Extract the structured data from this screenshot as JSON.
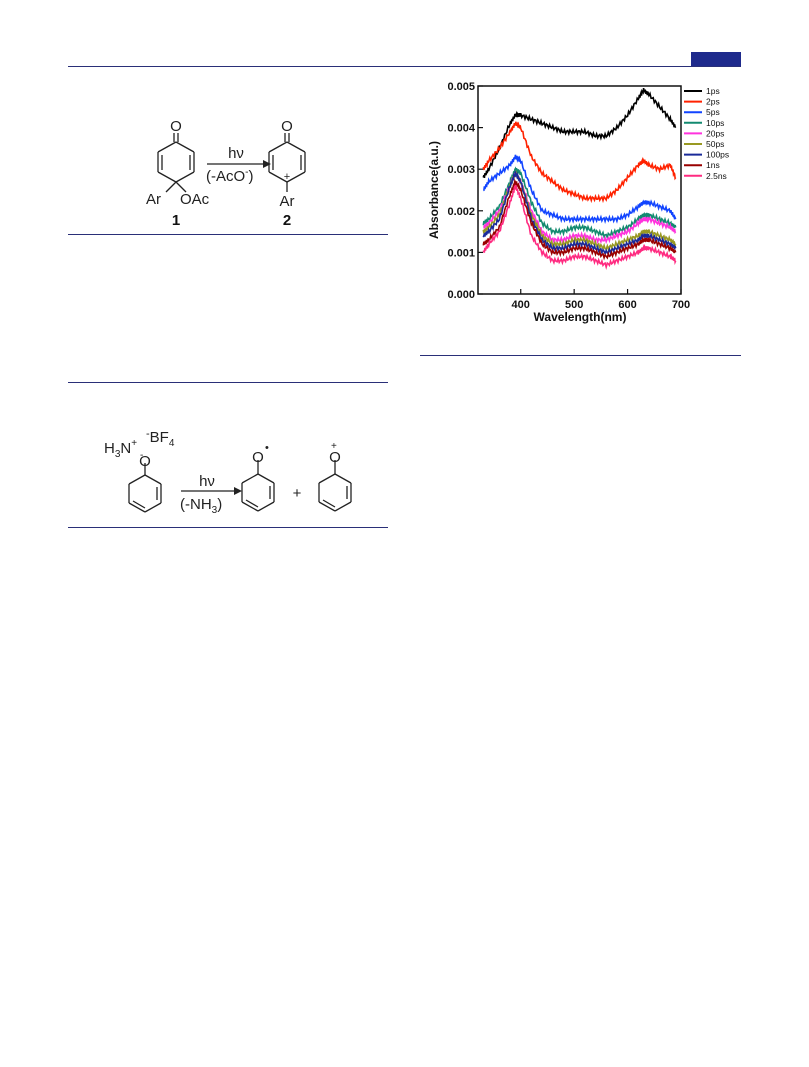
{
  "header": {
    "accent_color": "#1e2a8c",
    "rule_color": "#2a2f78"
  },
  "scheme1": {
    "reactant": {
      "oxo": "O",
      "aryl": "Ar",
      "acetoxy": "OAc",
      "number": "1"
    },
    "arrow": {
      "top": "hν",
      "bottom": "(-AcO",
      "bottom_sup": "-",
      "bottom_close": ")"
    },
    "product": {
      "oxo": "O",
      "charge": "+",
      "aryl": "Ar",
      "number": "2"
    }
  },
  "scheme2": {
    "reagent": {
      "h": "H",
      "h_sub": "3",
      "n": "N",
      "n_charge": "+",
      "anion_charge": "-",
      "anion": "BF",
      "anion_sub": "4",
      "o": "O",
      "o_charge": "-"
    },
    "arrow": {
      "top": "hν",
      "bottom": "(-NH",
      "bottom_sub": "3",
      "bottom_close": ")"
    },
    "product1": {
      "o": "O",
      "radical": "•"
    },
    "plus": "+",
    "product2": {
      "o": "O",
      "charge": "+"
    }
  },
  "chart_data": {
    "type": "line",
    "title": "",
    "xlabel": "Wavelength(nm)",
    "ylabel": "Absorbance(a.u.)",
    "xlim": [
      320,
      700
    ],
    "ylim": [
      0,
      0.005
    ],
    "x_ticks": [
      "400",
      "500",
      "600",
      "700"
    ],
    "y_ticks": [
      "0.000",
      "0.001",
      "0.002",
      "0.003",
      "0.004",
      "0.005"
    ],
    "grid": false,
    "legend_position": "right",
    "x": [
      330,
      340,
      360,
      380,
      390,
      400,
      420,
      440,
      460,
      480,
      500,
      520,
      540,
      560,
      580,
      600,
      620,
      630,
      640,
      660,
      680,
      690
    ],
    "series": [
      {
        "name": "1ps",
        "color": "#000000",
        "values": [
          0.0028,
          0.003,
          0.0035,
          0.0041,
          0.0043,
          0.0043,
          0.0042,
          0.0041,
          0.004,
          0.0039,
          0.0039,
          0.0039,
          0.0038,
          0.0038,
          0.004,
          0.0043,
          0.0047,
          0.0049,
          0.0048,
          0.0045,
          0.0042,
          0.004
        ]
      },
      {
        "name": "2ps",
        "color": "#ff2200",
        "values": [
          0.003,
          0.0032,
          0.0035,
          0.0039,
          0.0041,
          0.004,
          0.0033,
          0.0029,
          0.0027,
          0.0025,
          0.0024,
          0.0023,
          0.0023,
          0.0023,
          0.0025,
          0.0028,
          0.0031,
          0.0032,
          0.0031,
          0.003,
          0.0031,
          0.0028
        ]
      },
      {
        "name": "5ps",
        "color": "#1144ff",
        "values": [
          0.0025,
          0.0027,
          0.0029,
          0.0031,
          0.0033,
          0.0032,
          0.0025,
          0.002,
          0.0019,
          0.0018,
          0.0018,
          0.0018,
          0.0018,
          0.0018,
          0.0018,
          0.0019,
          0.0021,
          0.0022,
          0.0022,
          0.0021,
          0.002,
          0.0018
        ]
      },
      {
        "name": "10ps",
        "color": "#138a70",
        "values": [
          0.0017,
          0.0018,
          0.0021,
          0.0027,
          0.003,
          0.0029,
          0.0022,
          0.0017,
          0.0015,
          0.0015,
          0.0016,
          0.0016,
          0.0015,
          0.0014,
          0.0015,
          0.0016,
          0.0018,
          0.0019,
          0.0019,
          0.0018,
          0.0017,
          0.0016
        ]
      },
      {
        "name": "20ps",
        "color": "#ff33dd",
        "values": [
          0.0016,
          0.0017,
          0.002,
          0.0026,
          0.0029,
          0.0027,
          0.002,
          0.0015,
          0.0013,
          0.0013,
          0.0014,
          0.0014,
          0.0013,
          0.0013,
          0.0014,
          0.0015,
          0.0017,
          0.0018,
          0.0018,
          0.0017,
          0.0016,
          0.0015
        ]
      },
      {
        "name": "50ps",
        "color": "#999922",
        "values": [
          0.0015,
          0.0016,
          0.0019,
          0.0026,
          0.0029,
          0.0027,
          0.0019,
          0.0014,
          0.0012,
          0.0012,
          0.0013,
          0.0013,
          0.0012,
          0.0011,
          0.0012,
          0.0013,
          0.0014,
          0.0015,
          0.0015,
          0.0014,
          0.0013,
          0.0012
        ]
      },
      {
        "name": "100ps",
        "color": "#1a2a99",
        "values": [
          0.0014,
          0.0015,
          0.0018,
          0.0026,
          0.0029,
          0.0027,
          0.0018,
          0.0013,
          0.0011,
          0.0011,
          0.0012,
          0.0012,
          0.0011,
          0.001,
          0.0011,
          0.0012,
          0.0013,
          0.0014,
          0.0014,
          0.0013,
          0.0012,
          0.0011
        ]
      },
      {
        "name": "1ns",
        "color": "#990000",
        "values": [
          0.0012,
          0.0013,
          0.0016,
          0.0024,
          0.0027,
          0.0025,
          0.0017,
          0.0012,
          0.001,
          0.001,
          0.0011,
          0.0011,
          0.001,
          0.0009,
          0.001,
          0.0011,
          0.0012,
          0.0013,
          0.0013,
          0.0012,
          0.0011,
          0.001
        ]
      },
      {
        "name": "2.5ns",
        "color": "#ff2a80",
        "values": [
          0.001,
          0.0012,
          0.0015,
          0.0022,
          0.0026,
          0.0023,
          0.0014,
          0.001,
          0.0008,
          0.0008,
          0.0009,
          0.0009,
          0.0008,
          0.0007,
          0.0008,
          0.0009,
          0.001,
          0.0011,
          0.0011,
          0.001,
          0.0009,
          0.0008
        ]
      }
    ]
  }
}
